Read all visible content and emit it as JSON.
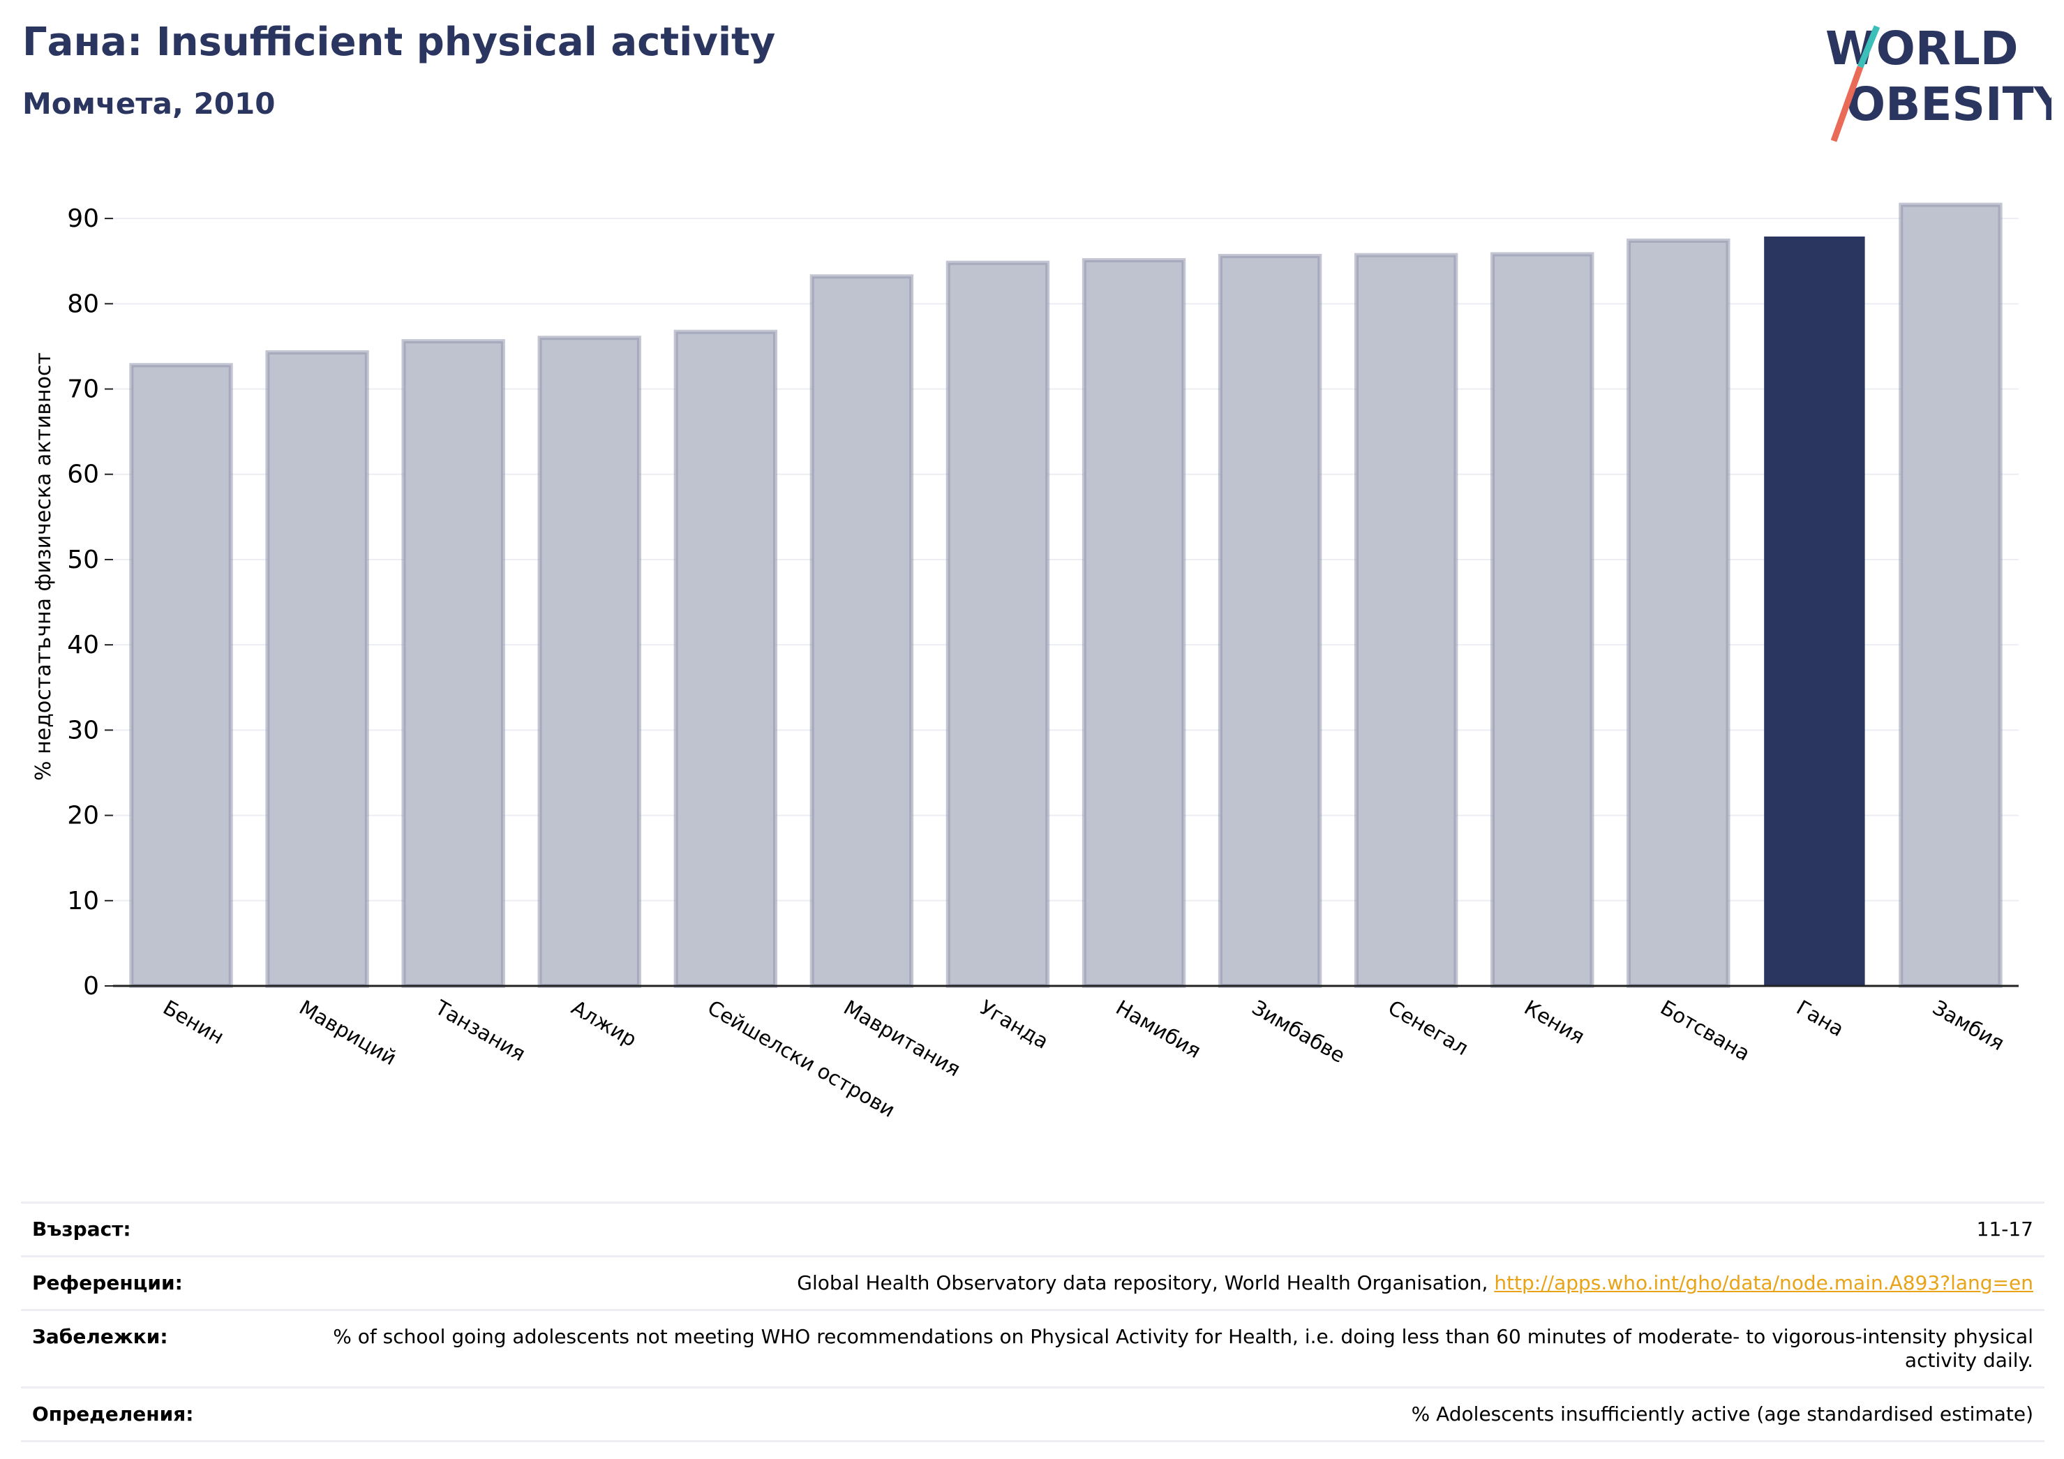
{
  "header": {
    "title": "Гана: Insufficient physical activity",
    "subtitle": "Момчета, 2010"
  },
  "logo": {
    "line1": "WORLD",
    "line2": "OBESITY"
  },
  "chart_data": {
    "type": "bar",
    "title": "Гана: Insufficient physical activity",
    "subtitle": "Момчета, 2010",
    "ylabel": "% недостатъчна физическа активност",
    "xlabel": "",
    "ylim": [
      0,
      95
    ],
    "yticks": [
      0,
      10,
      20,
      30,
      40,
      50,
      60,
      70,
      80,
      90
    ],
    "grid": true,
    "categories": [
      "Бенин",
      "Мавриций",
      "Танзания",
      "Алжир",
      "Сейшелски острови",
      "Мавритания",
      "Уганда",
      "Намибия",
      "Зимбабве",
      "Сенегал",
      "Кения",
      "Ботсвана",
      "Гана",
      "Замбия"
    ],
    "values": [
      72.8,
      74.3,
      75.6,
      76.0,
      76.7,
      83.2,
      84.8,
      85.1,
      85.6,
      85.7,
      85.8,
      87.4,
      87.8,
      91.6
    ],
    "highlight": "Гана",
    "colors": {
      "bar": "#bfc2cf",
      "bar_edge": "#9297ad",
      "highlight": "#2a3560",
      "grid": "#eceef3",
      "axis": "#222222"
    }
  },
  "footer": {
    "rows": [
      {
        "label": "Възраст:",
        "value": "11-17"
      },
      {
        "label": "Референции:",
        "value": "Global Health Observatory data repository, World Health Organisation, ",
        "link": "http://apps.who.int/gho/data/node.main.A893?lang=en"
      },
      {
        "label": "Забележки:",
        "value": "% of school going adolescents not meeting WHO recommendations on Physical Activity for Health, i.e. doing less than 60 minutes of moderate- to vigorous-intensity physical activity daily."
      },
      {
        "label": "Определения:",
        "value": "% Adolescents insufficiently active (age standardised estimate)"
      }
    ]
  }
}
